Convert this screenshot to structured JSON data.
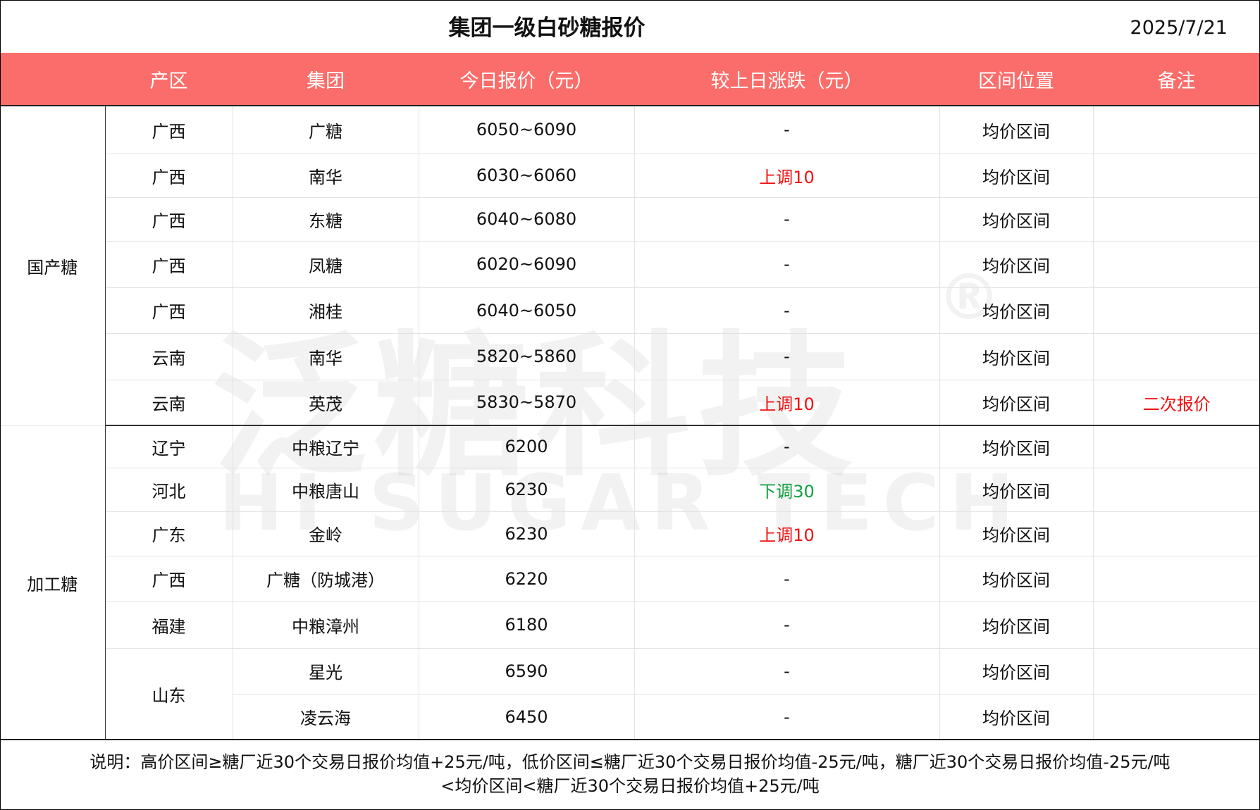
{
  "title": "集团一级白砂糖报价",
  "date": "2025/7/21",
  "headers": [
    "产区",
    "集团",
    "今日报价（元）",
    "较上日涨跌（元）",
    "区间位置",
    "备注"
  ],
  "categories": [
    "国产糖",
    "加工糖"
  ],
  "rows": [
    {
      "region": "广西",
      "group": "广糖",
      "price": "6050~6090",
      "change": "-",
      "change_color": "",
      "position": "均价区间",
      "remark": ""
    },
    {
      "region": "广西",
      "group": "南华",
      "price": "6030~6060",
      "change": "上调10",
      "change_color": "#f01010",
      "position": "均价区间",
      "remark": ""
    },
    {
      "region": "广西",
      "group": "东糖",
      "price": "6040~6080",
      "change": "-",
      "change_color": "",
      "position": "均价区间",
      "remark": ""
    },
    {
      "region": "广西",
      "group": "凤糖",
      "price": "6020~6090",
      "change": "-",
      "change_color": "",
      "position": "均价区间",
      "remark": ""
    },
    {
      "region": "广西",
      "group": "湘桂",
      "price": "6040~6050",
      "change": "-",
      "change_color": "",
      "position": "均价区间",
      "remark": ""
    },
    {
      "region": "云南",
      "group": "南华",
      "price": "5820~5860",
      "change": "-",
      "change_color": "",
      "position": "均价区间",
      "remark": ""
    },
    {
      "region": "云南",
      "group": "英茂",
      "price": "5830~5870",
      "change": "上调10",
      "change_color": "#f01010",
      "position": "均价区间",
      "remark": "二次报价"
    },
    {
      "region": "辽宁",
      "group": "中粮辽宁",
      "price": "6200",
      "change": "-",
      "change_color": "",
      "position": "均价区间",
      "remark": ""
    },
    {
      "region": "河北",
      "group": "中粮唐山",
      "price": "6230",
      "change": "下调30",
      "change_color": "#10a040",
      "position": "均价区间",
      "remark": ""
    },
    {
      "region": "广东",
      "group": "金岭",
      "price": "6230",
      "change": "上调10",
      "change_color": "#f01010",
      "position": "均价区间",
      "remark": ""
    },
    {
      "region": "广西",
      "group": "广糖（防城港）",
      "price": "6220",
      "change": "-",
      "change_color": "",
      "position": "均价区间",
      "remark": ""
    },
    {
      "region": "福建",
      "group": "中粮漳州",
      "price": "6180",
      "change": "-",
      "change_color": "",
      "position": "均价区间",
      "remark": ""
    },
    {
      "region": "山东",
      "group": "星光",
      "price": "6590",
      "change": "-",
      "change_color": "",
      "position": "均价区间",
      "remark": ""
    },
    {
      "region": "山东",
      "group": "凌云海",
      "price": "6450",
      "change": "-",
      "change_color": "",
      "position": "均价区间",
      "remark": ""
    }
  ],
  "note_line1": "说明：高价区间≥糖厂近30个交易日报价均值+25元/吨，低价区间≤糖厂近30个交易日报价均值-25元/吨，糖厂近30个交易日报价均值-25元/吨",
  "note_line2": "<均价区间<糖厂近30个交易日报价均值+25元/吨",
  "watermark": {
    "cn": "泛糖科技",
    "en": "HI SUGAR TECH",
    "mark": "®"
  }
}
